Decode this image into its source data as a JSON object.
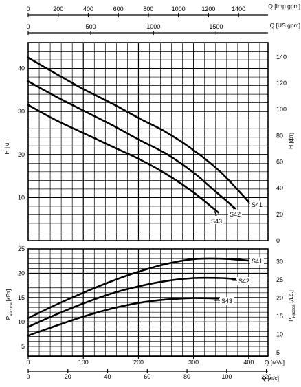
{
  "chart_data": [
    {
      "type": "line",
      "panel": "head",
      "x_unit_label": "Q [м³/ч]",
      "ylabel_left": "H [м]",
      "ylabel_right": "H [фт]",
      "xlim": [
        0,
        435
      ],
      "ylim": [
        0,
        46
      ],
      "ylim_right": [
        0,
        150.9
      ],
      "yticks_left": [
        10,
        20,
        30,
        40
      ],
      "yticks_right": [
        0,
        20,
        40,
        60,
        80,
        100,
        120,
        140
      ],
      "grid": true,
      "series": [
        {
          "name": "S41",
          "x": [
            0,
            50,
            100,
            150,
            200,
            250,
            300,
            350,
            400
          ],
          "y": [
            42.5,
            38.8,
            35.2,
            32.0,
            28.5,
            25.2,
            21.0,
            15.8,
            9.0
          ]
        },
        {
          "name": "S42",
          "x": [
            0,
            50,
            100,
            150,
            200,
            250,
            300,
            330,
            375
          ],
          "y": [
            37.0,
            33.5,
            30.2,
            27.0,
            23.5,
            20.2,
            15.8,
            12.5,
            7.5
          ]
        },
        {
          "name": "S43",
          "x": [
            0,
            50,
            100,
            150,
            200,
            250,
            300,
            345
          ],
          "y": [
            31.5,
            28.0,
            25.0,
            22.0,
            19.0,
            15.5,
            11.2,
            6.5
          ]
        }
      ]
    },
    {
      "type": "line",
      "panel": "power",
      "x_unit_label": "Q [м³/ч]",
      "ylabel_left": "P насоса [кВт]",
      "ylabel_right": "P насоса [л.с.]",
      "xlim": [
        0,
        435
      ],
      "ylim": [
        3,
        25
      ],
      "ylim_right": [
        4.02,
        33.5
      ],
      "yticks_left": [
        5,
        10,
        15,
        20,
        25
      ],
      "yticks_right": [
        5,
        10,
        15,
        20,
        25,
        30
      ],
      "grid": true,
      "series": [
        {
          "name": "S41",
          "x": [
            0,
            50,
            100,
            150,
            200,
            250,
            300,
            350,
            400
          ],
          "y": [
            10.8,
            13.5,
            16.0,
            18.3,
            20.3,
            21.9,
            22.9,
            23.0,
            22.6
          ]
        },
        {
          "name": "S42",
          "x": [
            0,
            50,
            100,
            150,
            200,
            250,
            300,
            350,
            375
          ],
          "y": [
            9.0,
            11.5,
            13.8,
            15.8,
            17.3,
            18.4,
            19.0,
            19.0,
            18.8
          ]
        },
        {
          "name": "S43",
          "x": [
            0,
            50,
            100,
            150,
            200,
            250,
            300,
            345
          ],
          "y": [
            7.2,
            9.2,
            11.1,
            12.7,
            13.9,
            14.6,
            14.9,
            14.8
          ]
        }
      ]
    }
  ],
  "axes": {
    "top_imp": {
      "label": "Q [Imp gpm]",
      "ticks": [
        0,
        200,
        400,
        600,
        800,
        1000,
        1200,
        1400
      ],
      "max": 1596
    },
    "top_us": {
      "label": "Q [US gpm]",
      "ticks": [
        0,
        500,
        1000,
        1500
      ],
      "max": 1915
    },
    "bottom_m3h": {
      "label": "Q [м³/ч]",
      "ticks": [
        0,
        100,
        200,
        300,
        400
      ],
      "max": 435
    },
    "bottom_ls": {
      "label": "Q [л/с]",
      "ticks": [
        0,
        20,
        40,
        60,
        80,
        100,
        120
      ],
      "max": 120.83
    }
  },
  "labels": {
    "h_left": "H [м]",
    "h_right": "H [фт]",
    "p_left_main": "P",
    "p_left_sub": "насоса",
    "p_left_unit": "[кВт]",
    "p_right_main": "P",
    "p_right_sub": "насоса",
    "p_right_unit": "[л.с.]",
    "q_imp": "Q [Imp gpm]",
    "q_us": "Q [US gpm]",
    "q_m3h": "Q [м³/ч]",
    "q_ls": "Q [л/с]"
  }
}
